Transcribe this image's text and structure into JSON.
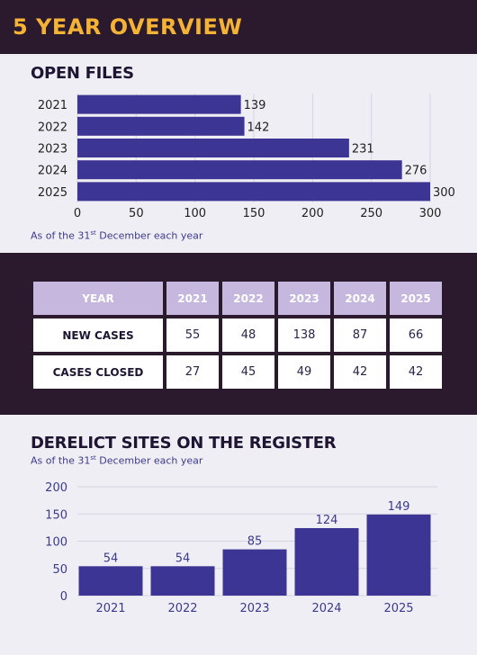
{
  "page_title": "5 YEAR OVERVIEW",
  "colors": {
    "dark_band": "#2b1a2e",
    "accent_gold": "#f5b335",
    "bar_purple": "#3d3593",
    "table_header": "#c6b7de"
  },
  "open_files": {
    "title": "OPEN FILES",
    "note_prefix": "As of the 31",
    "note_sup": "st",
    "note_suffix": " December each year"
  },
  "table": {
    "header_label": "YEAR",
    "years": [
      "2021",
      "2022",
      "2023",
      "2024",
      "2025"
    ],
    "rows": [
      {
        "label": "NEW CASES",
        "values": [
          "55",
          "48",
          "138",
          "87",
          "66"
        ]
      },
      {
        "label": "CASES CLOSED",
        "values": [
          "27",
          "45",
          "49",
          "42",
          "42"
        ]
      }
    ]
  },
  "derelict": {
    "title": "DERELICT SITES ON THE REGISTER",
    "note_prefix": "As of the 31",
    "note_sup": "st",
    "note_suffix": " December each year"
  },
  "chart_data": [
    {
      "type": "bar",
      "orientation": "horizontal",
      "title": "OPEN FILES",
      "categories": [
        "2021",
        "2022",
        "2023",
        "2024",
        "2025"
      ],
      "values": [
        139,
        142,
        231,
        276,
        300
      ],
      "xlim": [
        0,
        300
      ],
      "xticks": [
        0,
        50,
        100,
        150,
        200,
        250,
        300
      ],
      "grid": true
    },
    {
      "type": "bar",
      "orientation": "vertical",
      "title": "DERELICT SITES ON THE REGISTER",
      "categories": [
        "2021",
        "2022",
        "2023",
        "2024",
        "2025"
      ],
      "values": [
        54,
        54,
        85,
        124,
        149
      ],
      "ylim": [
        0,
        200
      ],
      "yticks": [
        0,
        50,
        100,
        150,
        200
      ],
      "grid": true
    }
  ]
}
